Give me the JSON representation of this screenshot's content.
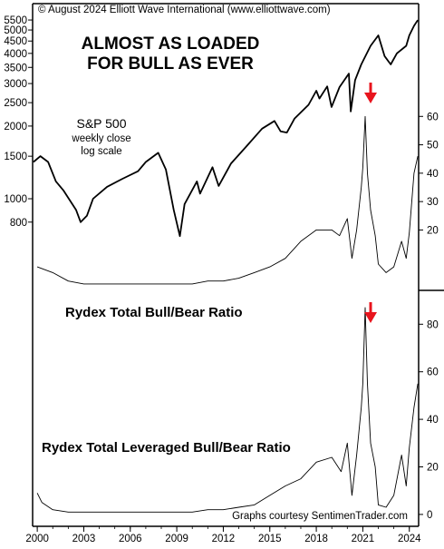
{
  "copyright": "© August 2024 Elliott Wave International (www.elliottwave.com)",
  "title_line1": "ALMOST AS LOADED",
  "title_line2": "FOR BULL AS EVER",
  "credit": "Graphs courtesy SentimenTrader.com",
  "colors": {
    "line": "#000000",
    "arrow": "#e8141d",
    "background": "#ffffff"
  },
  "x_axis": {
    "ticks": [
      "2000",
      "2003",
      "2006",
      "2009",
      "2012",
      "2015",
      "2018",
      "2021",
      "2024"
    ],
    "range": [
      1999.7,
      2024.6
    ]
  },
  "chart_data": [
    {
      "type": "line",
      "label_line1": "S&P 500",
      "label_line2": "weekly close",
      "label_line3": "log scale",
      "scale": "log",
      "ylim": [
        600,
        6000
      ],
      "y_ticks": [
        "5500",
        "5000",
        "4500",
        "4000",
        "3500",
        "3000",
        "2500",
        "2000",
        "1500",
        "1000",
        "800"
      ],
      "x": [
        1999.75,
        2000.2,
        2000.7,
        2001.2,
        2001.7,
        2002.5,
        2002.8,
        2003.2,
        2003.6,
        2004.5,
        2005.5,
        2006.5,
        2007.0,
        2007.8,
        2008.3,
        2008.8,
        2009.2,
        2009.5,
        2010.3,
        2010.5,
        2011.3,
        2011.7,
        2012.5,
        2013.5,
        2014.5,
        2015.3,
        2015.7,
        2016.1,
        2016.6,
        2017.5,
        2018.0,
        2018.2,
        2018.7,
        2018.98,
        2019.5,
        2020.1,
        2020.22,
        2020.5,
        2020.9,
        2021.5,
        2022.0,
        2022.4,
        2022.8,
        2023.2,
        2023.8,
        2024.0,
        2024.3,
        2024.55
      ],
      "y": [
        1420,
        1500,
        1420,
        1180,
        1080,
        900,
        800,
        850,
        1000,
        1120,
        1210,
        1300,
        1420,
        1550,
        1320,
        900,
        700,
        950,
        1180,
        1050,
        1350,
        1130,
        1400,
        1650,
        1950,
        2100,
        1900,
        1880,
        2150,
        2450,
        2800,
        2600,
        2920,
        2400,
        2900,
        3300,
        2300,
        3100,
        3600,
        4300,
        4750,
        3900,
        3600,
        4000,
        4300,
        4750,
        5200,
        5500
      ]
    },
    {
      "type": "line",
      "title": "Rydex Total Bull/Bear Ratio",
      "ylim": [
        0,
        70
      ],
      "y_ticks": [
        20,
        30,
        40,
        50,
        60
      ],
      "x": [
        2000,
        2001,
        2002,
        2003,
        2004,
        2005,
        2006,
        2007,
        2008,
        2009,
        2010,
        2011,
        2012,
        2013,
        2014,
        2015,
        2016,
        2017,
        2018,
        2019,
        2019.5,
        2020,
        2020.3,
        2020.6,
        2020.9,
        2021.0,
        2021.15,
        2021.3,
        2021.5,
        2021.8,
        2022,
        2022.5,
        2023,
        2023.5,
        2023.8,
        2024,
        2024.3,
        2024.55
      ],
      "y": [
        7,
        5,
        2,
        1,
        1,
        1,
        1,
        1,
        1,
        1,
        1,
        2,
        2,
        3,
        5,
        7,
        10,
        16,
        20,
        20,
        18,
        24,
        10,
        20,
        35,
        42,
        60,
        40,
        27,
        18,
        8,
        5,
        7,
        16,
        10,
        19,
        40,
        46
      ]
    },
    {
      "type": "line",
      "title": "Rydex Total Leveraged Bull/Bear Ratio",
      "ylim": [
        -5,
        95
      ],
      "y_ticks": [
        0,
        20,
        40,
        60,
        80
      ],
      "x": [
        2000,
        2000.3,
        2001,
        2002,
        2003,
        2004,
        2005,
        2006,
        2007,
        2008,
        2009,
        2010,
        2011,
        2012,
        2013,
        2014,
        2015,
        2016,
        2017,
        2018,
        2019,
        2019.6,
        2020,
        2020.3,
        2020.6,
        2020.9,
        2021.0,
        2021.15,
        2021.3,
        2021.5,
        2021.8,
        2022,
        2022.5,
        2023,
        2023.5,
        2023.8,
        2024,
        2024.3,
        2024.55
      ],
      "y": [
        9,
        5,
        2,
        1,
        1,
        1,
        1,
        1,
        1,
        1,
        1,
        1,
        2,
        2,
        3,
        4,
        8,
        12,
        15,
        22,
        24,
        18,
        30,
        8,
        25,
        45,
        55,
        87,
        55,
        30,
        20,
        4,
        3,
        8,
        25,
        12,
        28,
        45,
        55
      ]
    }
  ]
}
